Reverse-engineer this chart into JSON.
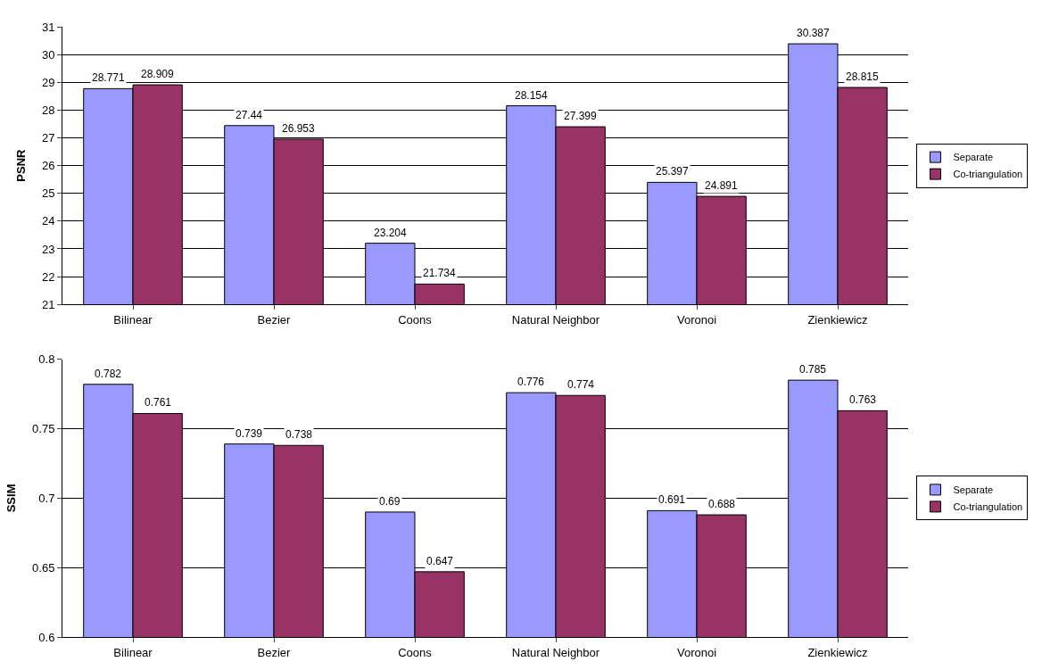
{
  "chart_data": [
    {
      "type": "bar",
      "ylabel": "PSNR",
      "categories": [
        "Bilinear",
        "Bezier",
        "Coons",
        "Natural Neighbor",
        "Voronoi",
        "Zienkiewicz"
      ],
      "series": [
        {
          "name": "Separate",
          "color": "#9999ff",
          "values": [
            28.771,
            27.44,
            23.204,
            28.154,
            25.397,
            30.387
          ]
        },
        {
          "name": "Co-triangulation",
          "color": "#993366",
          "values": [
            28.909,
            26.953,
            21.734,
            27.399,
            24.891,
            28.815
          ]
        }
      ],
      "ylim": [
        21,
        31
      ],
      "yticks": [
        21,
        22,
        23,
        24,
        25,
        26,
        27,
        28,
        29,
        30,
        31
      ],
      "grid": "y",
      "legend": "right",
      "data_labels": true
    },
    {
      "type": "bar",
      "ylabel": "SSIM",
      "categories": [
        "Bilinear",
        "Bezier",
        "Coons",
        "Natural Neighbor",
        "Voronoi",
        "Zienkiewicz"
      ],
      "series": [
        {
          "name": "Separate",
          "color": "#9999ff",
          "values": [
            0.782,
            0.739,
            0.69,
            0.776,
            0.691,
            0.785
          ]
        },
        {
          "name": "Co-triangulation",
          "color": "#993366",
          "values": [
            0.761,
            0.738,
            0.647,
            0.774,
            0.688,
            0.763
          ]
        }
      ],
      "ylim": [
        0.6,
        0.8
      ],
      "yticks": [
        0.6,
        0.65,
        0.7,
        0.75,
        0.8
      ],
      "grid": "y",
      "legend": "right",
      "data_labels": true
    }
  ]
}
